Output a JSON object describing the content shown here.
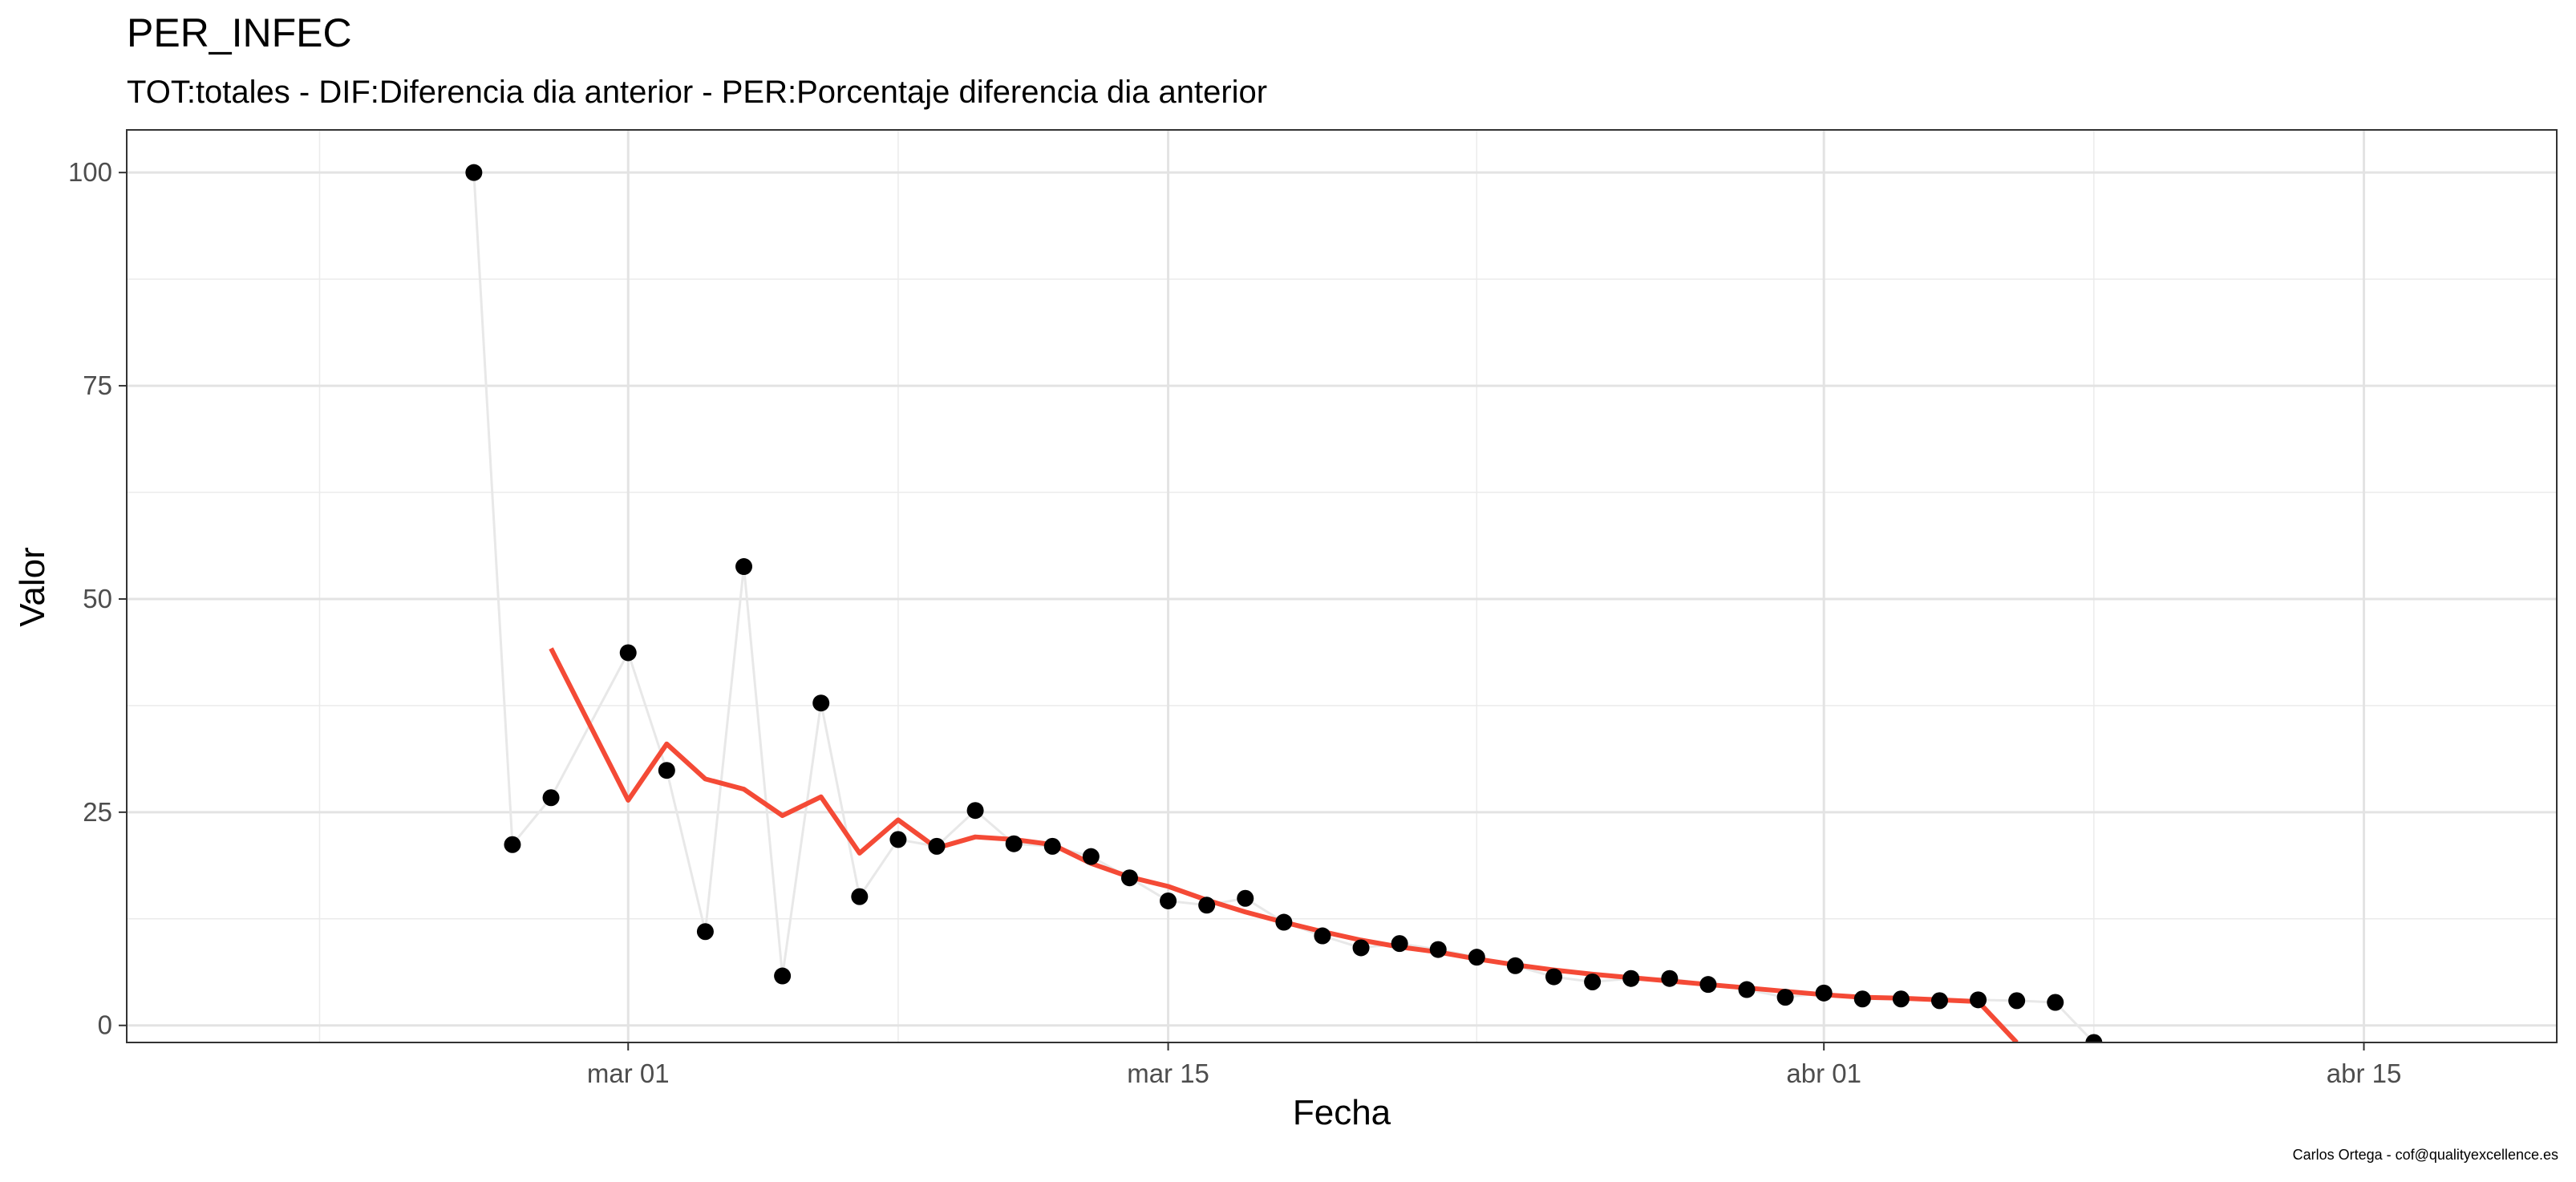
{
  "chart_data": {
    "type": "line",
    "title": "PER_INFEC",
    "subtitle": "TOT:totales - DIF:Diferencia dia anterior - PER:Porcentaje diferencia dia anterior",
    "xlabel": "Fecha",
    "ylabel": "Valor",
    "caption": "Carlos Ortega - cof@qualityexcellence.es",
    "x_range": [
      "2020-02-17",
      "2020-04-20"
    ],
    "ylim": [
      -2,
      105
    ],
    "y_ticks": [
      0,
      25,
      50,
      75,
      100
    ],
    "x_ticks": [
      {
        "date": "2020-03-01",
        "label": "mar 01"
      },
      {
        "date": "2020-03-15",
        "label": "mar 15"
      },
      {
        "date": "2020-04-01",
        "label": "abr 01"
      },
      {
        "date": "2020-04-15",
        "label": "abr 15"
      }
    ],
    "x_minor_ticks": [
      "2020-02-22",
      "2020-03-08",
      "2020-03-23",
      "2020-04-08"
    ],
    "grid": true,
    "series": [
      {
        "type": "line+points",
        "color": "#000000",
        "line_color": "#e8e8e8",
        "points": [
          [
            "2020-02-26",
            100
          ],
          [
            "2020-02-27",
            21.2
          ],
          [
            "2020-02-28",
            26.7
          ],
          [
            "2020-03-01",
            43.7
          ],
          [
            "2020-03-02",
            29.9
          ],
          [
            "2020-03-03",
            11.0
          ],
          [
            "2020-03-04",
            53.8
          ],
          [
            "2020-03-05",
            5.8
          ],
          [
            "2020-03-06",
            37.8
          ],
          [
            "2020-03-07",
            15.1
          ],
          [
            "2020-03-08",
            21.8
          ],
          [
            "2020-03-09",
            21.0
          ],
          [
            "2020-03-10",
            25.2
          ],
          [
            "2020-03-11",
            21.3
          ],
          [
            "2020-03-12",
            21.0
          ],
          [
            "2020-03-13",
            19.8
          ],
          [
            "2020-03-14",
            17.3
          ],
          [
            "2020-03-15",
            14.6
          ],
          [
            "2020-03-16",
            14.1
          ],
          [
            "2020-03-17",
            14.9
          ],
          [
            "2020-03-18",
            12.1
          ],
          [
            "2020-03-19",
            10.5
          ],
          [
            "2020-03-20",
            9.1
          ],
          [
            "2020-03-21",
            9.6
          ],
          [
            "2020-03-22",
            8.9
          ],
          [
            "2020-03-23",
            8.0
          ],
          [
            "2020-03-24",
            7.0
          ],
          [
            "2020-03-25",
            5.7
          ],
          [
            "2020-03-26",
            5.1
          ],
          [
            "2020-03-27",
            5.5
          ],
          [
            "2020-03-28",
            5.5
          ],
          [
            "2020-03-29",
            4.8
          ],
          [
            "2020-03-30",
            4.2
          ],
          [
            "2020-03-31",
            3.3
          ],
          [
            "2020-04-01",
            3.8
          ],
          [
            "2020-04-02",
            3.1
          ],
          [
            "2020-04-03",
            3.1
          ],
          [
            "2020-04-04",
            2.9
          ],
          [
            "2020-04-05",
            3.0
          ],
          [
            "2020-04-06",
            2.9
          ],
          [
            "2020-04-07",
            2.7
          ],
          [
            "2020-04-08",
            -2.0
          ]
        ]
      },
      {
        "type": "line",
        "color": "#f44a36",
        "points": [
          [
            "2020-02-28",
            44.2
          ],
          [
            "2020-03-01",
            26.4
          ],
          [
            "2020-03-02",
            33.0
          ],
          [
            "2020-03-03",
            28.9
          ],
          [
            "2020-03-04",
            27.7
          ],
          [
            "2020-03-05",
            24.6
          ],
          [
            "2020-03-06",
            26.8
          ],
          [
            "2020-03-07",
            20.2
          ],
          [
            "2020-03-08",
            24.1
          ],
          [
            "2020-03-09",
            20.8
          ],
          [
            "2020-03-10",
            22.1
          ],
          [
            "2020-03-11",
            21.8
          ],
          [
            "2020-03-12",
            21.2
          ],
          [
            "2020-03-13",
            19.0
          ],
          [
            "2020-03-14",
            17.4
          ],
          [
            "2020-03-15",
            16.3
          ],
          [
            "2020-03-16",
            14.7
          ],
          [
            "2020-03-17",
            13.3
          ],
          [
            "2020-03-18",
            12.1
          ],
          [
            "2020-03-19",
            11.0
          ],
          [
            "2020-03-20",
            10.0
          ],
          [
            "2020-03-21",
            9.2
          ],
          [
            "2020-03-22",
            8.6
          ],
          [
            "2020-03-23",
            7.8
          ],
          [
            "2020-03-24",
            7.1
          ],
          [
            "2020-03-25",
            6.5
          ],
          [
            "2020-03-26",
            6.0
          ],
          [
            "2020-03-27",
            5.6
          ],
          [
            "2020-03-28",
            5.2
          ],
          [
            "2020-03-29",
            4.8
          ],
          [
            "2020-03-30",
            4.4
          ],
          [
            "2020-03-31",
            4.0
          ],
          [
            "2020-04-01",
            3.6
          ],
          [
            "2020-04-02",
            3.3
          ],
          [
            "2020-04-03",
            3.2
          ],
          [
            "2020-04-04",
            3.0
          ],
          [
            "2020-04-05",
            2.8
          ],
          [
            "2020-04-06",
            -2.0
          ]
        ]
      }
    ]
  }
}
